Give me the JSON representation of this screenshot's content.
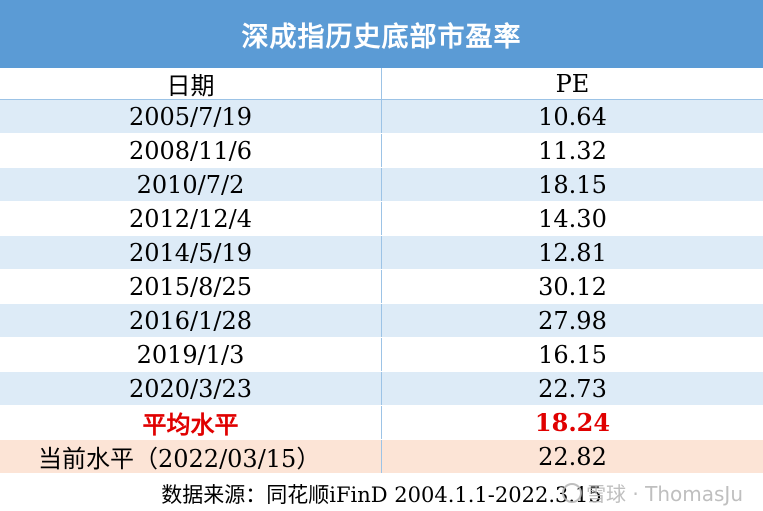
{
  "title": "深成指历史底部市盈率",
  "header": {
    "date": "日期",
    "pe": "PE"
  },
  "rows": [
    {
      "date": "2005/7/19",
      "pe": "10.64"
    },
    {
      "date": "2008/11/6",
      "pe": "11.32"
    },
    {
      "date": "2010/7/2",
      "pe": "18.15"
    },
    {
      "date": "2012/12/4",
      "pe": "14.30"
    },
    {
      "date": "2014/5/19",
      "pe": "12.81"
    },
    {
      "date": "2015/8/25",
      "pe": "30.12"
    },
    {
      "date": "2016/1/28",
      "pe": "27.98"
    },
    {
      "date": "2019/1/3",
      "pe": "16.15"
    },
    {
      "date": "2020/3/23",
      "pe": "22.73"
    }
  ],
  "average": {
    "label": "平均水平",
    "pe": "18.24"
  },
  "current": {
    "label": "当前水平（2022/03/15）",
    "pe": "22.82"
  },
  "footer": "数据来源：同花顺iFinD 2004.1.1-2022.3.15",
  "watermark": "雪球 · ThomasJu",
  "colors": {
    "title_bg": "#5b9bd5",
    "band": "#ddebf7",
    "average_text": "#e00000",
    "current_bg": "#fce4d6"
  }
}
